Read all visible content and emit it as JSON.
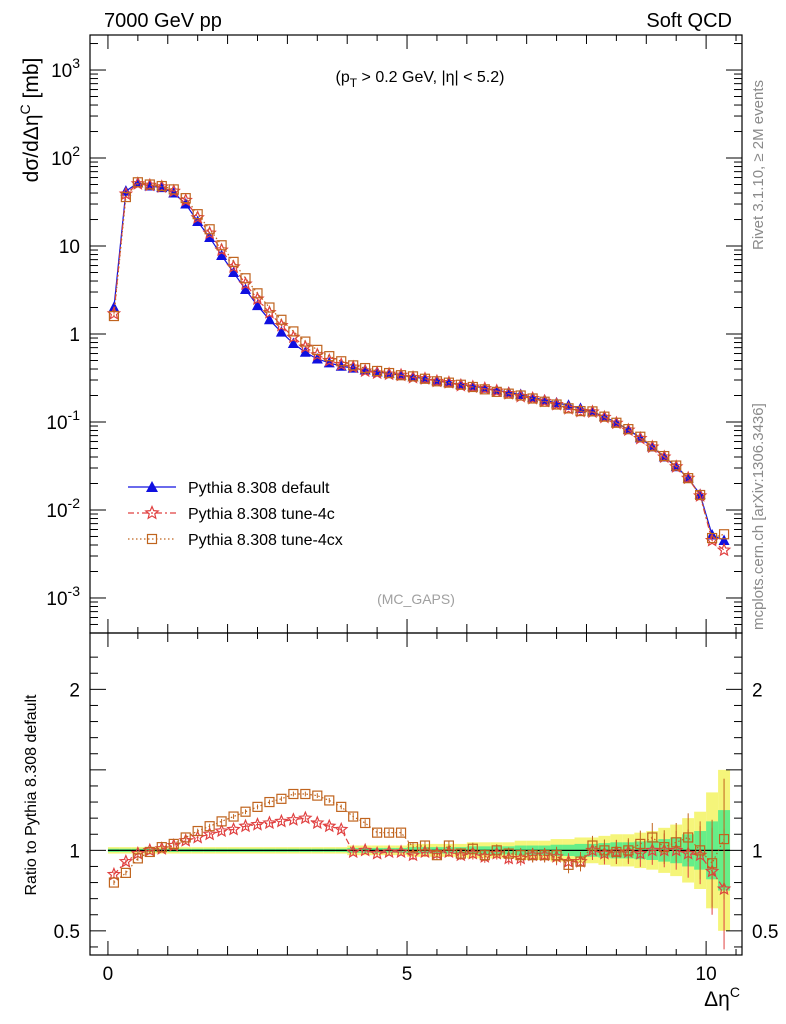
{
  "header": {
    "left": "7000 GeV pp",
    "right": "Soft QCD"
  },
  "side_text": {
    "rivet": "Rivet 3.1.10, ≥ 2M events",
    "mcplots": "mcplots.cern.ch [arXiv:1306.3436]"
  },
  "cut_label": "(p_T > 0.2 GeV, |η| < 5.2)",
  "analysis_label": "(MC_GAPS)",
  "legend": [
    "Pythia 8.308 default",
    "Pythia 8.308 tune-4c",
    "Pythia 8.308 tune-4cx"
  ],
  "colors": {
    "default": "#1010e0",
    "tune4c": "#e04040",
    "tune4cx": "#c0641e",
    "band_inner": "#66ee88",
    "band_outer": "#f5f57a"
  },
  "chart_data": [
    {
      "type": "line",
      "title": "",
      "xlabel": "Δη^C",
      "ylabel": "dσ/dΔη^C [mb]",
      "yscale": "log",
      "ylim": [
        0.0004,
        2500
      ],
      "xlim": [
        -0.3,
        10.6
      ],
      "yticks": [
        "10^-3",
        "10^-2",
        "10^-1",
        "1",
        "10",
        "10^2",
        "10^3"
      ],
      "x": [
        0.1,
        0.3,
        0.5,
        0.7,
        0.9,
        1.1,
        1.3,
        1.5,
        1.7,
        1.9,
        2.1,
        2.3,
        2.5,
        2.7,
        2.9,
        3.1,
        3.3,
        3.5,
        3.7,
        3.9,
        4.1,
        4.3,
        4.5,
        4.7,
        4.9,
        5.1,
        5.3,
        5.5,
        5.7,
        5.9,
        6.1,
        6.3,
        6.5,
        6.7,
        6.9,
        7.1,
        7.3,
        7.5,
        7.7,
        7.9,
        8.1,
        8.3,
        8.5,
        8.7,
        8.9,
        9.1,
        9.3,
        9.5,
        9.7,
        9.9,
        10.1,
        10.3
      ],
      "series": [
        {
          "name": "Pythia 8.308 default",
          "marker": "triangle",
          "values": [
            2.0,
            42,
            52,
            48,
            46,
            40,
            30,
            19,
            12.5,
            7.8,
            5.0,
            3.2,
            2.1,
            1.45,
            1.05,
            0.78,
            0.62,
            0.52,
            0.47,
            0.43,
            0.41,
            0.39,
            0.37,
            0.355,
            0.34,
            0.325,
            0.31,
            0.295,
            0.28,
            0.268,
            0.255,
            0.243,
            0.23,
            0.218,
            0.205,
            0.19,
            0.178,
            0.165,
            0.155,
            0.143,
            0.13,
            0.115,
            0.098,
            0.082,
            0.066,
            0.052,
            0.04,
            0.031,
            0.023,
            0.015,
            0.0052,
            0.0045
          ]
        },
        {
          "name": "Pythia 8.308 tune-4c",
          "marker": "star",
          "values": [
            1.7,
            39,
            51,
            49,
            47,
            42,
            33,
            21,
            14,
            9.0,
            5.8,
            3.7,
            2.5,
            1.75,
            1.25,
            0.92,
            0.71,
            0.58,
            0.5,
            0.45,
            0.42,
            0.38,
            0.36,
            0.35,
            0.34,
            0.32,
            0.31,
            0.29,
            0.28,
            0.26,
            0.25,
            0.24,
            0.225,
            0.21,
            0.195,
            0.185,
            0.172,
            0.158,
            0.142,
            0.132,
            0.13,
            0.113,
            0.097,
            0.081,
            0.065,
            0.052,
            0.04,
            0.031,
            0.023,
            0.0145,
            0.0045,
            0.0035
          ]
        },
        {
          "name": "Pythia 8.308 tune-4cx",
          "marker": "square",
          "values": [
            1.6,
            36,
            53,
            50,
            48,
            44,
            35,
            23,
            15.5,
            10.2,
            6.6,
            4.3,
            2.9,
            2.0,
            1.45,
            1.07,
            0.82,
            0.66,
            0.56,
            0.49,
            0.44,
            0.41,
            0.38,
            0.36,
            0.34,
            0.33,
            0.31,
            0.29,
            0.28,
            0.265,
            0.25,
            0.235,
            0.22,
            0.21,
            0.2,
            0.185,
            0.17,
            0.158,
            0.143,
            0.133,
            0.132,
            0.115,
            0.098,
            0.083,
            0.068,
            0.053,
            0.041,
            0.032,
            0.023,
            0.0148,
            0.0048,
            0.0053
          ]
        }
      ]
    },
    {
      "type": "line",
      "title": "",
      "xlabel": "Δη^C",
      "ylabel": "Ratio to Pythia 8.308 default",
      "ylim": [
        0.35,
        2.35
      ],
      "xticks": [
        0,
        5,
        10
      ],
      "yticks": [
        0.5,
        1,
        2
      ],
      "band_half_width": [
        0.01,
        0.01,
        0.01,
        0.01,
        0.01,
        0.01,
        0.01,
        0.01,
        0.01,
        0.01,
        0.01,
        0.01,
        0.01,
        0.01,
        0.01,
        0.01,
        0.01,
        0.01,
        0.01,
        0.01,
        0.015,
        0.015,
        0.015,
        0.015,
        0.015,
        0.02,
        0.02,
        0.02,
        0.02,
        0.02,
        0.025,
        0.025,
        0.025,
        0.025,
        0.03,
        0.03,
        0.03,
        0.035,
        0.035,
        0.04,
        0.04,
        0.045,
        0.05,
        0.05,
        0.055,
        0.06,
        0.07,
        0.08,
        0.1,
        0.12,
        0.18,
        0.25
      ],
      "series": [
        {
          "name": "Pythia 8.308 tune-4c",
          "marker": "star",
          "values": [
            0.85,
            0.93,
            0.98,
            1.0,
            1.01,
            1.03,
            1.06,
            1.08,
            1.1,
            1.12,
            1.13,
            1.15,
            1.16,
            1.17,
            1.18,
            1.19,
            1.2,
            1.17,
            1.15,
            1.13,
            0.99,
            1.0,
            0.98,
            0.99,
            0.99,
            0.97,
            0.99,
            0.98,
            0.99,
            0.97,
            0.98,
            0.96,
            0.98,
            0.95,
            0.95,
            0.97,
            0.97,
            0.96,
            0.93,
            0.93,
            1.0,
            0.98,
            0.99,
            0.99,
            0.98,
            1.0,
            1.0,
            1.0,
            0.98,
            0.97,
            0.87,
            0.76
          ]
        },
        {
          "name": "Pythia 8.308 tune-4cx",
          "marker": "square",
          "values": [
            0.8,
            0.86,
            0.95,
            0.99,
            1.02,
            1.04,
            1.08,
            1.12,
            1.15,
            1.18,
            1.21,
            1.24,
            1.27,
            1.3,
            1.32,
            1.35,
            1.35,
            1.34,
            1.31,
            1.27,
            1.21,
            1.17,
            1.11,
            1.11,
            1.11,
            1.02,
            1.03,
            0.97,
            1.03,
            0.98,
            1.01,
            0.97,
            1.0,
            0.98,
            0.97,
            0.97,
            0.97,
            0.97,
            0.91,
            0.93,
            1.03,
            1.0,
            0.99,
            1.0,
            1.04,
            1.08,
            1.02,
            1.05,
            1.08,
            1.0,
            0.92,
            1.07
          ]
        }
      ]
    }
  ]
}
